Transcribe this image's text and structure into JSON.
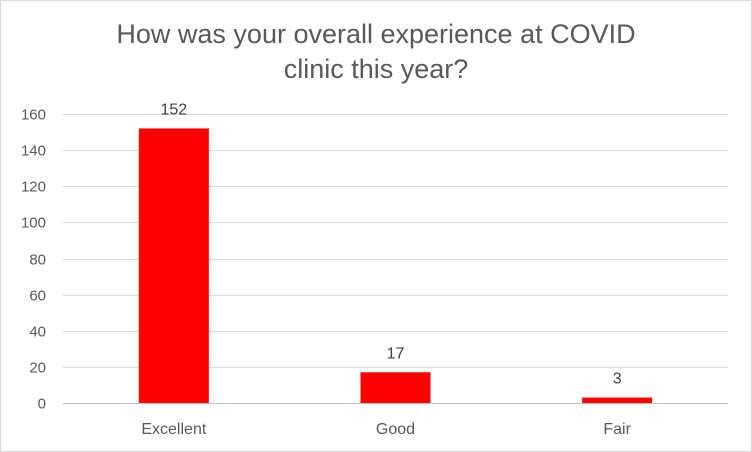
{
  "chart_data": {
    "type": "bar",
    "title_lines": [
      "How was your overall experience at COVID",
      "clinic this year?"
    ],
    "categories": [
      "Excellent",
      "Good",
      "Fair"
    ],
    "values": [
      152,
      17,
      3
    ],
    "data_labels": [
      "152",
      "17",
      "3"
    ],
    "ylim": [
      0,
      160
    ],
    "yticks": [
      0,
      20,
      40,
      60,
      80,
      100,
      120,
      140,
      160
    ],
    "ytick_labels": [
      "0",
      "20",
      "40",
      "60",
      "80",
      "100",
      "120",
      "140",
      "160"
    ],
    "xlabel": "",
    "ylabel": "",
    "grid": true,
    "legend": "none",
    "bar_color": "#ff0000"
  }
}
